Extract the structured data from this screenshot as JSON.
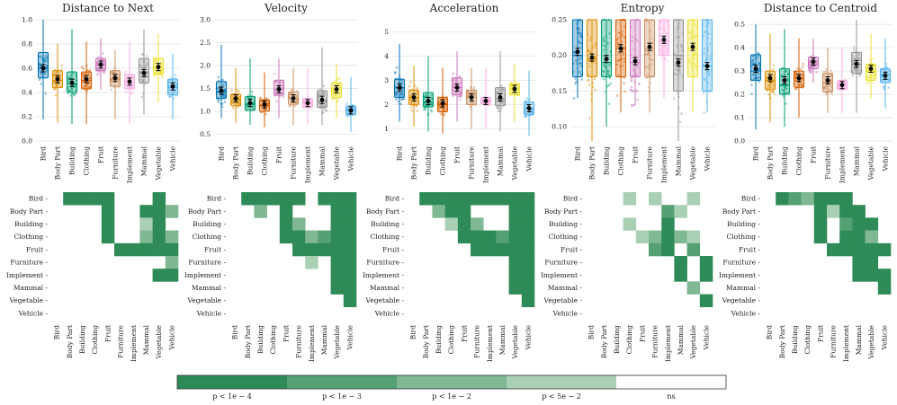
{
  "categories": [
    "Bird",
    "Body Part",
    "Building",
    "Clothing",
    "Fruit",
    "Furniture",
    "Implement",
    "Mammal",
    "Vegetable",
    "Vehicle"
  ],
  "colors": [
    "#0173b2",
    "#de8f05",
    "#029e73",
    "#d55e00",
    "#cc78bc",
    "#ca9161",
    "#fbafe4",
    "#949494",
    "#ece133",
    "#56b4e9"
  ],
  "chart_data": [
    {
      "type": "box",
      "title": "Distance to Next",
      "ylim": [
        0,
        1
      ],
      "yticks": [
        0,
        0.2,
        0.4,
        0.6,
        0.8,
        1
      ],
      "tick_labels": [
        "0.0",
        "0.2",
        "0.4",
        "0.6",
        "0.8",
        "1.0"
      ],
      "boxes": [
        [
          0.52,
          0.6,
          0.73
        ],
        [
          0.44,
          0.5,
          0.58
        ],
        [
          0.4,
          0.47,
          0.57
        ],
        [
          0.43,
          0.5,
          0.57
        ],
        [
          0.58,
          0.63,
          0.68
        ],
        [
          0.45,
          0.51,
          0.58
        ],
        [
          0.43,
          0.48,
          0.55
        ],
        [
          0.48,
          0.56,
          0.68
        ],
        [
          0.55,
          0.6,
          0.68
        ],
        [
          0.38,
          0.44,
          0.51
        ]
      ],
      "means": [
        0.6,
        0.51,
        0.48,
        0.51,
        0.63,
        0.52,
        0.49,
        0.56,
        0.61,
        0.45
      ],
      "whiskers": [
        [
          0.18,
          1.0
        ],
        [
          0.15,
          0.8
        ],
        [
          0.14,
          0.92
        ],
        [
          0.14,
          0.82
        ],
        [
          0.42,
          0.85
        ],
        [
          0.18,
          0.75
        ],
        [
          0.14,
          0.82
        ],
        [
          0.22,
          0.92
        ],
        [
          0.32,
          0.88
        ],
        [
          0.18,
          0.72
        ]
      ]
    },
    {
      "type": "box",
      "title": "Velocity",
      "ylim": [
        0.35,
        3.0
      ],
      "yticks": [
        0.5,
        1,
        1.5,
        2,
        2.5,
        3
      ],
      "tick_labels": [
        "0.5",
        "1.0",
        "1.5",
        "2.0",
        "2.5",
        "3.0"
      ],
      "boxes": [
        [
          1.28,
          1.42,
          1.65
        ],
        [
          1.12,
          1.25,
          1.38
        ],
        [
          1.02,
          1.15,
          1.32
        ],
        [
          1.0,
          1.12,
          1.25
        ],
        [
          1.35,
          1.48,
          1.68
        ],
        [
          1.15,
          1.28,
          1.42
        ],
        [
          1.1,
          1.18,
          1.28
        ],
        [
          1.08,
          1.22,
          1.45
        ],
        [
          1.3,
          1.45,
          1.62
        ],
        [
          0.92,
          1.02,
          1.12
        ]
      ],
      "means": [
        1.45,
        1.28,
        1.18,
        1.15,
        1.48,
        1.28,
        1.18,
        1.25,
        1.48,
        1.02
      ],
      "whiskers": [
        [
          0.85,
          2.45
        ],
        [
          0.75,
          1.95
        ],
        [
          0.7,
          2.15
        ],
        [
          0.65,
          1.85
        ],
        [
          0.85,
          2.15
        ],
        [
          0.7,
          1.95
        ],
        [
          0.7,
          1.95
        ],
        [
          0.7,
          2.4
        ],
        [
          0.85,
          2.05
        ],
        [
          0.55,
          1.75
        ]
      ]
    },
    {
      "type": "box",
      "title": "Acceleration",
      "ylim": [
        0.5,
        5.5
      ],
      "yticks": [
        1,
        2,
        3,
        4,
        5
      ],
      "tick_labels": [
        "1",
        "2",
        "3",
        "4",
        "5"
      ],
      "boxes": [
        [
          2.3,
          2.7,
          3.05
        ],
        [
          2.0,
          2.3,
          2.6
        ],
        [
          1.9,
          2.1,
          2.5
        ],
        [
          1.7,
          2.0,
          2.3
        ],
        [
          2.4,
          2.7,
          3.1
        ],
        [
          2.0,
          2.3,
          2.6
        ],
        [
          2.05,
          2.15,
          2.3
        ],
        [
          1.95,
          2.25,
          2.7
        ],
        [
          2.4,
          2.65,
          2.85
        ],
        [
          1.6,
          1.85,
          2.1
        ]
      ],
      "means": [
        2.7,
        2.3,
        2.15,
        2.05,
        2.7,
        2.3,
        2.15,
        2.3,
        2.65,
        1.85
      ],
      "whiskers": [
        [
          1.3,
          4.5
        ],
        [
          1.1,
          3.6
        ],
        [
          0.9,
          4.0
        ],
        [
          0.8,
          3.5
        ],
        [
          1.3,
          4.2
        ],
        [
          1.0,
          3.5
        ],
        [
          1.0,
          3.5
        ],
        [
          0.9,
          4.2
        ],
        [
          1.3,
          3.7
        ],
        [
          0.7,
          3.4
        ]
      ]
    },
    {
      "type": "box",
      "title": "Entropy",
      "ylim": [
        0.08,
        0.25
      ],
      "yticks": [
        0.1,
        0.15,
        0.2,
        0.25
      ],
      "tick_labels": [
        "0.10",
        "0.15",
        "0.20",
        "0.25"
      ],
      "boxes": [
        [
          0.17,
          0.2,
          0.25
        ],
        [
          0.17,
          0.195,
          0.25
        ],
        [
          0.17,
          0.19,
          0.25
        ],
        [
          0.17,
          0.21,
          0.25
        ],
        [
          0.17,
          0.19,
          0.25
        ],
        [
          0.17,
          0.21,
          0.25
        ],
        [
          0.2,
          0.22,
          0.25
        ],
        [
          0.15,
          0.2,
          0.25
        ],
        [
          0.17,
          0.21,
          0.25
        ],
        [
          0.15,
          0.185,
          0.25
        ]
      ],
      "means": [
        0.205,
        0.197,
        0.195,
        0.21,
        0.192,
        0.212,
        0.222,
        0.19,
        0.212,
        0.185
      ],
      "whiskers": [
        [
          0.14,
          0.25
        ],
        [
          0.08,
          0.25
        ],
        [
          0.1,
          0.25
        ],
        [
          0.12,
          0.25
        ],
        [
          0.13,
          0.25
        ],
        [
          0.12,
          0.25
        ],
        [
          0.14,
          0.25
        ],
        [
          0.08,
          0.25
        ],
        [
          0.12,
          0.25
        ],
        [
          0.12,
          0.25
        ]
      ]
    },
    {
      "type": "box",
      "title": "Distance to Centroid",
      "ylim": [
        0,
        0.52
      ],
      "yticks": [
        0,
        0.1,
        0.2,
        0.3,
        0.4,
        0.5
      ],
      "tick_labels": [
        "0.0",
        "0.1",
        "0.2",
        "0.3",
        "0.4",
        "0.5"
      ],
      "boxes": [
        [
          0.26,
          0.3,
          0.37
        ],
        [
          0.22,
          0.26,
          0.3
        ],
        [
          0.2,
          0.24,
          0.31
        ],
        [
          0.23,
          0.27,
          0.3
        ],
        [
          0.31,
          0.33,
          0.36
        ],
        [
          0.21,
          0.25,
          0.29
        ],
        [
          0.22,
          0.24,
          0.26
        ],
        [
          0.29,
          0.33,
          0.38
        ],
        [
          0.26,
          0.3,
          0.33
        ],
        [
          0.25,
          0.28,
          0.31
        ]
      ],
      "means": [
        0.31,
        0.27,
        0.26,
        0.27,
        0.34,
        0.26,
        0.24,
        0.33,
        0.31,
        0.28
      ],
      "whiskers": [
        [
          0.05,
          0.5
        ],
        [
          0.08,
          0.46
        ],
        [
          0.06,
          0.48
        ],
        [
          0.1,
          0.44
        ],
        [
          0.25,
          0.44
        ],
        [
          0.12,
          0.4
        ],
        [
          0.12,
          0.4
        ],
        [
          0.12,
          0.52
        ],
        [
          0.18,
          0.46
        ],
        [
          0.14,
          0.44
        ]
      ]
    }
  ],
  "pvalue_matrices": [
    {
      "title": "Distance to Next",
      "cells": [
        [
          0,
          1,
          0
        ],
        [
          0,
          2,
          0
        ],
        [
          0,
          3,
          0
        ],
        [
          0,
          4,
          0
        ],
        [
          0,
          8,
          0
        ],
        [
          1,
          4,
          0
        ],
        [
          1,
          7,
          0
        ],
        [
          1,
          8,
          0
        ],
        [
          1,
          9,
          2
        ],
        [
          2,
          4,
          0
        ],
        [
          2,
          7,
          3
        ],
        [
          2,
          8,
          0
        ],
        [
          3,
          4,
          0
        ],
        [
          3,
          7,
          2
        ],
        [
          3,
          8,
          0
        ],
        [
          3,
          9,
          2
        ],
        [
          4,
          5,
          0
        ],
        [
          4,
          6,
          0
        ],
        [
          4,
          7,
          0
        ],
        [
          4,
          8,
          0
        ],
        [
          4,
          9,
          0
        ],
        [
          5,
          9,
          2
        ],
        [
          6,
          8,
          0
        ],
        [
          6,
          9,
          0
        ]
      ]
    },
    {
      "title": "Velocity",
      "cells": [
        [
          0,
          1,
          0
        ],
        [
          0,
          2,
          0
        ],
        [
          0,
          3,
          0
        ],
        [
          0,
          4,
          0
        ],
        [
          0,
          5,
          0
        ],
        [
          0,
          7,
          0
        ],
        [
          0,
          8,
          0
        ],
        [
          0,
          9,
          0
        ],
        [
          1,
          2,
          2
        ],
        [
          1,
          4,
          0
        ],
        [
          1,
          8,
          0
        ],
        [
          1,
          9,
          0
        ],
        [
          2,
          4,
          0
        ],
        [
          2,
          5,
          2
        ],
        [
          2,
          8,
          0
        ],
        [
          2,
          9,
          0
        ],
        [
          3,
          4,
          0
        ],
        [
          3,
          5,
          0
        ],
        [
          3,
          6,
          2
        ],
        [
          3,
          7,
          1
        ],
        [
          3,
          8,
          0
        ],
        [
          3,
          9,
          0
        ],
        [
          4,
          5,
          0
        ],
        [
          4,
          6,
          0
        ],
        [
          4,
          7,
          0
        ],
        [
          4,
          8,
          0
        ],
        [
          4,
          9,
          0
        ],
        [
          5,
          6,
          3
        ],
        [
          5,
          8,
          0
        ],
        [
          5,
          9,
          0
        ],
        [
          6,
          8,
          0
        ],
        [
          6,
          9,
          0
        ],
        [
          7,
          8,
          0
        ],
        [
          7,
          9,
          0
        ],
        [
          8,
          9,
          0
        ]
      ]
    },
    {
      "title": "Acceleration",
      "cells": [
        [
          0,
          1,
          0
        ],
        [
          0,
          2,
          0
        ],
        [
          0,
          3,
          0
        ],
        [
          0,
          4,
          0
        ],
        [
          0,
          5,
          0
        ],
        [
          0,
          6,
          0
        ],
        [
          0,
          7,
          0
        ],
        [
          0,
          8,
          0
        ],
        [
          0,
          9,
          0
        ],
        [
          1,
          2,
          2
        ],
        [
          1,
          3,
          0
        ],
        [
          1,
          4,
          0
        ],
        [
          1,
          8,
          0
        ],
        [
          1,
          9,
          0
        ],
        [
          2,
          3,
          3
        ],
        [
          2,
          4,
          0
        ],
        [
          2,
          5,
          2
        ],
        [
          2,
          8,
          0
        ],
        [
          2,
          9,
          0
        ],
        [
          3,
          4,
          0
        ],
        [
          3,
          5,
          0
        ],
        [
          3,
          6,
          0
        ],
        [
          3,
          7,
          1
        ],
        [
          3,
          8,
          0
        ],
        [
          3,
          9,
          0
        ],
        [
          4,
          5,
          0
        ],
        [
          4,
          6,
          0
        ],
        [
          4,
          7,
          0
        ],
        [
          4,
          8,
          0
        ],
        [
          4,
          9,
          0
        ],
        [
          5,
          8,
          0
        ],
        [
          5,
          9,
          0
        ],
        [
          6,
          8,
          0
        ],
        [
          6,
          9,
          0
        ],
        [
          7,
          8,
          0
        ],
        [
          7,
          9,
          0
        ],
        [
          8,
          9,
          0
        ]
      ]
    },
    {
      "title": "Entropy",
      "cells": [
        [
          0,
          3,
          3
        ],
        [
          0,
          5,
          3
        ],
        [
          0,
          8,
          3
        ],
        [
          1,
          6,
          1
        ],
        [
          1,
          7,
          3
        ],
        [
          2,
          3,
          3
        ],
        [
          2,
          6,
          0
        ],
        [
          3,
          4,
          3
        ],
        [
          3,
          5,
          2
        ],
        [
          3,
          6,
          0
        ],
        [
          3,
          7,
          2
        ],
        [
          3,
          8,
          3
        ],
        [
          4,
          5,
          1
        ],
        [
          4,
          6,
          0
        ],
        [
          4,
          8,
          1
        ],
        [
          5,
          7,
          0
        ],
        [
          5,
          9,
          0
        ],
        [
          6,
          7,
          0
        ],
        [
          6,
          9,
          0
        ],
        [
          7,
          8,
          2
        ],
        [
          8,
          9,
          0
        ]
      ]
    },
    {
      "title": "Distance to Centroid",
      "cells": [
        [
          0,
          1,
          0
        ],
        [
          0,
          2,
          1
        ],
        [
          0,
          3,
          2
        ],
        [
          0,
          4,
          0
        ],
        [
          0,
          5,
          0
        ],
        [
          0,
          6,
          0
        ],
        [
          1,
          4,
          0
        ],
        [
          1,
          5,
          3
        ],
        [
          1,
          6,
          0
        ],
        [
          1,
          7,
          0
        ],
        [
          2,
          4,
          0
        ],
        [
          2,
          6,
          1
        ],
        [
          2,
          7,
          0
        ],
        [
          2,
          8,
          0
        ],
        [
          3,
          4,
          0
        ],
        [
          3,
          6,
          0
        ],
        [
          3,
          7,
          0
        ],
        [
          3,
          8,
          2
        ],
        [
          4,
          5,
          0
        ],
        [
          4,
          6,
          0
        ],
        [
          4,
          7,
          0
        ],
        [
          4,
          8,
          0
        ],
        [
          4,
          9,
          0
        ],
        [
          5,
          7,
          0
        ],
        [
          5,
          8,
          0
        ],
        [
          6,
          7,
          0
        ],
        [
          6,
          8,
          0
        ],
        [
          6,
          9,
          0
        ],
        [
          7,
          9,
          0
        ]
      ]
    }
  ],
  "legend": {
    "labels": [
      "p < 1e − 4",
      "p < 1e − 3",
      "p < 1e − 2",
      "p < 5e − 2",
      "ns"
    ],
    "colors": [
      "#2e8b57",
      "#55a173",
      "#7fb892",
      "#a9d0b4",
      "#ffffff"
    ]
  }
}
